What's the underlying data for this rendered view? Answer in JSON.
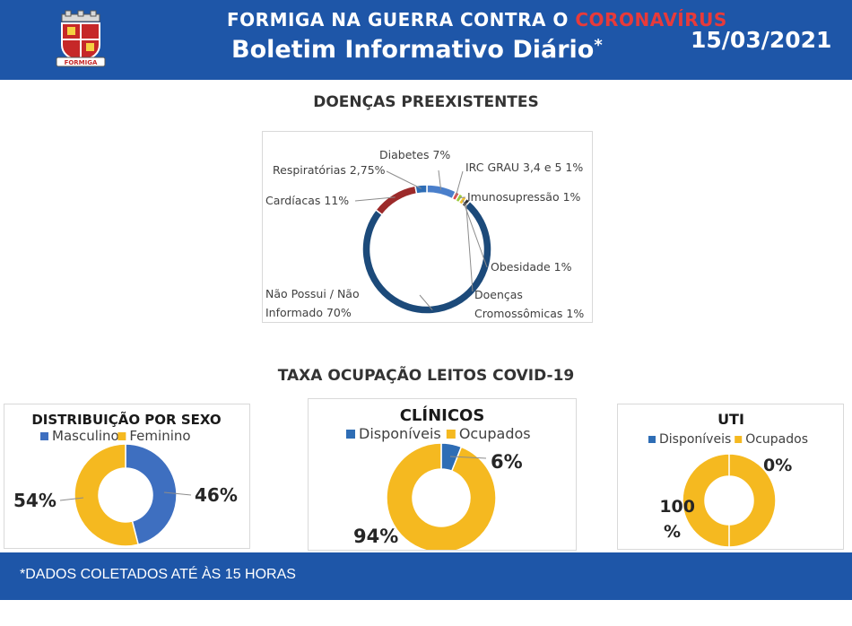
{
  "header": {
    "title_prefix": "FORMIGA NA GUERRA CONTRA O ",
    "title_highlight": "CORONAVÍRUS",
    "subtitle": "Boletim Informativo Diário",
    "subtitle_mark": "*",
    "date": "15/03/2021",
    "logo_caption": "FORMIGA",
    "colors": {
      "bar": "#1e56a8",
      "highlight": "#e83a3a"
    }
  },
  "sections": {
    "diseases_title": "DOENÇAS PREEXISTENTES",
    "beds_title": "TAXA OCUPAÇÃO LEITOS COVID-19"
  },
  "footer": {
    "note": "*DADOS COLETADOS ATÉ ÀS 15 HORAS"
  },
  "chart_data": [
    {
      "type": "pie",
      "title": "DOENÇAS PREEXISTENTES",
      "donut": true,
      "slices": [
        {
          "label": "Diabetes",
          "pct_label": "7%",
          "value": 7,
          "color": "#4a7fcb"
        },
        {
          "label": "IRC GRAU 3,4 e 5",
          "pct_label": "1%",
          "value": 1,
          "color": "#dd4b4b"
        },
        {
          "label": "Imunosupressão",
          "pct_label": "1%",
          "value": 1,
          "color": "#9ccc3d"
        },
        {
          "label": "Obesidade",
          "pct_label": "1%",
          "value": 1,
          "color": "#f2c12e"
        },
        {
          "label": "Doenças Cromossômicas",
          "pct_label": "1%",
          "value": 1,
          "color": "#2c2c2c"
        },
        {
          "label": "Não Possui / Não Informado",
          "pct_label": "70%",
          "value": 70,
          "color": "#1c4a7a"
        },
        {
          "label": "Cardíacas",
          "pct_label": "11%",
          "value": 11,
          "color": "#9c2a2a"
        },
        {
          "label": "Respiratórias",
          "pct_label": "2,75%",
          "value": 2.75,
          "color": "#2e6db5"
        }
      ]
    },
    {
      "type": "pie",
      "title": "DISTRIBUIÇÃO POR SEXO",
      "donut": true,
      "legend": [
        "Masculino",
        "Feminino"
      ],
      "slices": [
        {
          "label": "Masculino",
          "pct_label": "46%",
          "value": 46,
          "color": "#3e6fc0"
        },
        {
          "label": "Feminino",
          "pct_label": "54%",
          "value": 54,
          "color": "#f5b920"
        }
      ]
    },
    {
      "type": "pie",
      "title": "CLÍNICOS",
      "donut": true,
      "legend": [
        "Disponíveis",
        "Ocupados"
      ],
      "slices": [
        {
          "label": "Disponíveis",
          "pct_label": "6%",
          "value": 6,
          "color": "#2e6db5"
        },
        {
          "label": "Ocupados",
          "pct_label": "94%",
          "value": 94,
          "color": "#f5b920"
        }
      ]
    },
    {
      "type": "pie",
      "title": "UTI",
      "donut": true,
      "legend": [
        "Disponíveis",
        "Ocupados"
      ],
      "slices": [
        {
          "label": "Disponíveis",
          "pct_label": "0%",
          "value": 0,
          "color": "#2e6db5"
        },
        {
          "label": "Ocupados",
          "pct_label": "100%",
          "value": 100,
          "color": "#f5b920"
        }
      ]
    }
  ]
}
